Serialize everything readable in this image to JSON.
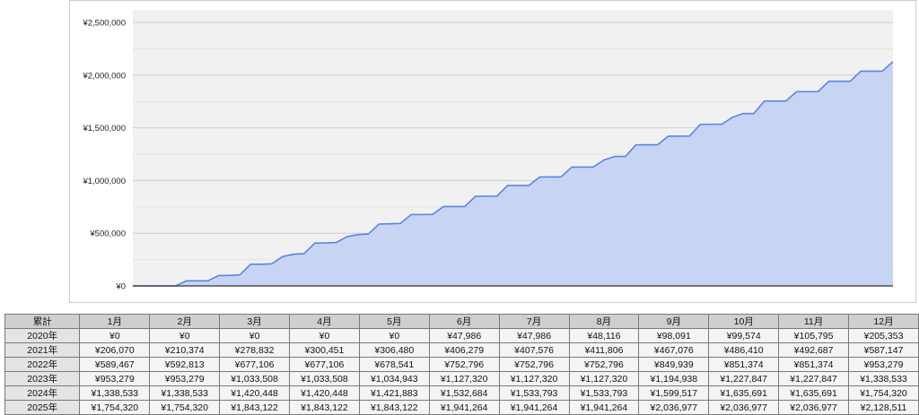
{
  "chart_data": {
    "type": "area",
    "ylim": [
      0,
      2500000
    ],
    "yticks": [
      "¥0",
      "¥500,000",
      "¥1,000,000",
      "¥1,500,000",
      "¥2,000,000",
      "¥2,500,000"
    ],
    "ytick_values": [
      0,
      500000,
      1000000,
      1500000,
      2000000,
      2500000
    ],
    "grid": true,
    "legend": "none",
    "fill_color": "#c5d2f3",
    "line_color": "#5b84e1",
    "plot_background": "#f1f1f1",
    "values": [
      0,
      0,
      0,
      0,
      0,
      47986,
      47986,
      48116,
      98091,
      99574,
      105795,
      205353,
      206070,
      210374,
      278832,
      300451,
      306480,
      406279,
      407576,
      411806,
      467076,
      486410,
      492687,
      587147,
      589467,
      592813,
      677106,
      677106,
      678541,
      752796,
      752796,
      752796,
      849939,
      851374,
      851374,
      953279,
      953279,
      953279,
      1033508,
      1033508,
      1034943,
      1127320,
      1127320,
      1127320,
      1194938,
      1227847,
      1227847,
      1338533,
      1338533,
      1338533,
      1420448,
      1420448,
      1421883,
      1532684,
      1533793,
      1533793,
      1599517,
      1635691,
      1635691,
      1754320,
      1754320,
      1754320,
      1843122,
      1843122,
      1843122,
      1941264,
      1941264,
      1941264,
      2036977,
      2036977,
      2036977,
      2128511
    ]
  },
  "table": {
    "corner": "累計",
    "months": [
      "1月",
      "2月",
      "3月",
      "4月",
      "5月",
      "6月",
      "7月",
      "8月",
      "9月",
      "10月",
      "11月",
      "12月"
    ],
    "rows": [
      {
        "year": "2020年",
        "cells": [
          "¥0",
          "¥0",
          "¥0",
          "¥0",
          "¥0",
          "¥47,986",
          "¥47,986",
          "¥48,116",
          "¥98,091",
          "¥99,574",
          "¥105,795",
          "¥205,353"
        ]
      },
      {
        "year": "2021年",
        "cells": [
          "¥206,070",
          "¥210,374",
          "¥278,832",
          "¥300,451",
          "¥306,480",
          "¥406,279",
          "¥407,576",
          "¥411,806",
          "¥467,076",
          "¥486,410",
          "¥492,687",
          "¥587,147"
        ]
      },
      {
        "year": "2022年",
        "cells": [
          "¥589,467",
          "¥592,813",
          "¥677,106",
          "¥677,106",
          "¥678,541",
          "¥752,796",
          "¥752,796",
          "¥752,796",
          "¥849,939",
          "¥851,374",
          "¥851,374",
          "¥953,279"
        ]
      },
      {
        "year": "2023年",
        "cells": [
          "¥953,279",
          "¥953,279",
          "¥1,033,508",
          "¥1,033,508",
          "¥1,034,943",
          "¥1,127,320",
          "¥1,127,320",
          "¥1,127,320",
          "¥1,194,938",
          "¥1,227,847",
          "¥1,227,847",
          "¥1,338,533"
        ]
      },
      {
        "year": "2024年",
        "cells": [
          "¥1,338,533",
          "¥1,338,533",
          "¥1,420,448",
          "¥1,420,448",
          "¥1,421,883",
          "¥1,532,684",
          "¥1,533,793",
          "¥1,533,793",
          "¥1,599,517",
          "¥1,635,691",
          "¥1,635,691",
          "¥1,754,320"
        ]
      },
      {
        "year": "2025年",
        "cells": [
          "¥1,754,320",
          "¥1,754,320",
          "¥1,843,122",
          "¥1,843,122",
          "¥1,843,122",
          "¥1,941,264",
          "¥1,941,264",
          "¥1,941,264",
          "¥2,036,977",
          "¥2,036,977",
          "¥2,036,977",
          "¥2,128,511"
        ]
      }
    ]
  }
}
